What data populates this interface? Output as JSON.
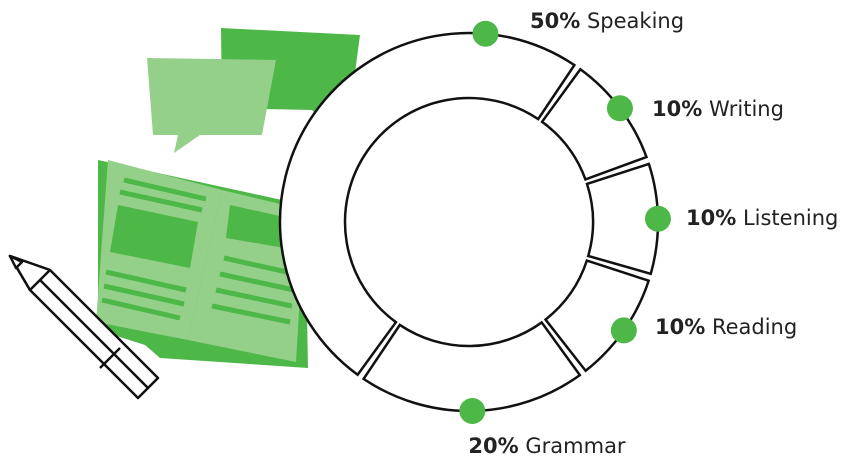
{
  "chart_data": {
    "type": "donut",
    "categories": [
      "Speaking",
      "Writing",
      "Listening",
      "Reading",
      "Grammar"
    ],
    "values": [
      50,
      10,
      10,
      10,
      20
    ],
    "value_labels": [
      "50%",
      "10%",
      "10%",
      "10%",
      "20%"
    ],
    "color": "#4db848"
  }
}
